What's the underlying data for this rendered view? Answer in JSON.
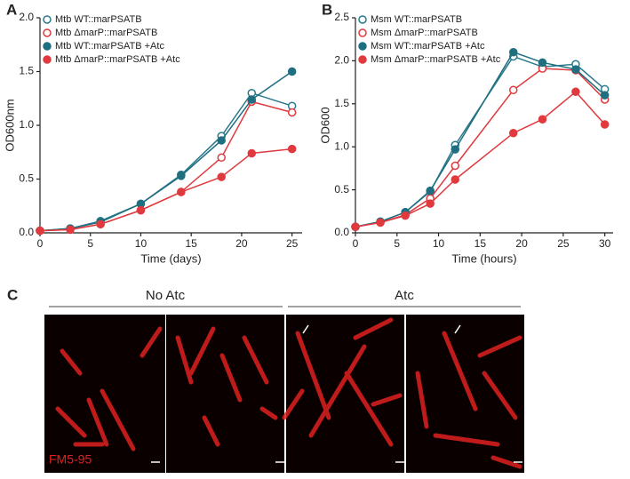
{
  "chart_data": [
    {
      "type": "line",
      "panel_label": "A",
      "x_label": "Time (days)",
      "y_label": "OD600nm",
      "xlim": [
        0,
        26
      ],
      "xticks": [
        0,
        5,
        10,
        15,
        20,
        25
      ],
      "ylim": [
        0,
        2
      ],
      "yticks": [
        {
          "value": 0,
          "label": "0.0"
        },
        {
          "value": 0.5,
          "label": "0.5"
        },
        {
          "value": 1,
          "label": "1.0"
        },
        {
          "value": 1.5,
          "label": "1.5"
        },
        {
          "value": 2,
          "label": "2.0"
        }
      ],
      "legend": "upper left",
      "x": [
        0,
        3,
        6,
        10,
        14,
        18,
        21,
        25
      ],
      "series": [
        {
          "name": "Mtb WT::marPSATB",
          "color": "#2a7a8c",
          "marker": "open",
          "values": [
            0.02,
            0.04,
            0.11,
            0.27,
            0.54,
            0.9,
            1.3,
            1.18
          ]
        },
        {
          "name": "Mtb ΔmarP::marPSATB",
          "color": "#e0393e",
          "marker": "open",
          "values": [
            0.02,
            0.03,
            0.08,
            0.21,
            0.38,
            0.7,
            1.22,
            1.12
          ]
        },
        {
          "name": "Mtb WT::marPSATB +Atc",
          "color": "#1f6f80",
          "marker": "filled",
          "values": [
            0.02,
            0.04,
            0.1,
            0.27,
            0.53,
            0.86,
            1.24,
            1.5
          ]
        },
        {
          "name": "Mtb ΔmarP::marPSATB +Atc",
          "color": "#e0393e",
          "marker": "filled",
          "values": [
            0.02,
            0.03,
            0.08,
            0.21,
            0.38,
            0.52,
            0.74,
            0.78
          ]
        }
      ]
    },
    {
      "type": "line",
      "panel_label": "B",
      "x_label": "Time (hours)",
      "y_label": "OD600",
      "xlim": [
        0,
        31
      ],
      "xticks": [
        0,
        5,
        10,
        15,
        20,
        25,
        30
      ],
      "ylim": [
        0,
        2.5
      ],
      "yticks": [
        {
          "value": 0,
          "label": "0.0"
        },
        {
          "value": 0.5,
          "label": "0.5"
        },
        {
          "value": 1,
          "label": "1.0"
        },
        {
          "value": 1.5,
          "label": "1.5"
        },
        {
          "value": 2,
          "label": "2.0"
        },
        {
          "value": 2.5,
          "label": "2.5"
        }
      ],
      "legend": "upper left",
      "x": [
        0,
        3,
        6,
        9,
        12,
        19,
        22.5,
        26.5,
        30
      ],
      "series": [
        {
          "name": "Msm WT::marPSATB",
          "color": "#2a7a8c",
          "marker": "open",
          "values": [
            0.07,
            0.13,
            0.24,
            0.48,
            1.02,
            2.05,
            1.93,
            1.96,
            1.67
          ]
        },
        {
          "name": "Msm ΔmarP::marPSATB",
          "color": "#e0393e",
          "marker": "open",
          "values": [
            0.07,
            0.12,
            0.21,
            0.4,
            0.78,
            1.66,
            1.91,
            1.89,
            1.55
          ]
        },
        {
          "name": "Msm WT::marPSATB +Atc",
          "color": "#1f6f80",
          "marker": "filled",
          "values": [
            0.07,
            0.13,
            0.24,
            0.49,
            0.97,
            2.1,
            1.98,
            1.9,
            1.6
          ]
        },
        {
          "name": "Msm ΔmarP::marPSATB +Atc",
          "color": "#e0393e",
          "marker": "filled",
          "values": [
            0.07,
            0.12,
            0.2,
            0.34,
            0.62,
            1.16,
            1.32,
            1.64,
            1.26
          ]
        }
      ]
    }
  ],
  "panel_c": {
    "panel_label": "C",
    "group_left": "No Atc",
    "group_right": "Atc",
    "stain": "FM5-95"
  }
}
